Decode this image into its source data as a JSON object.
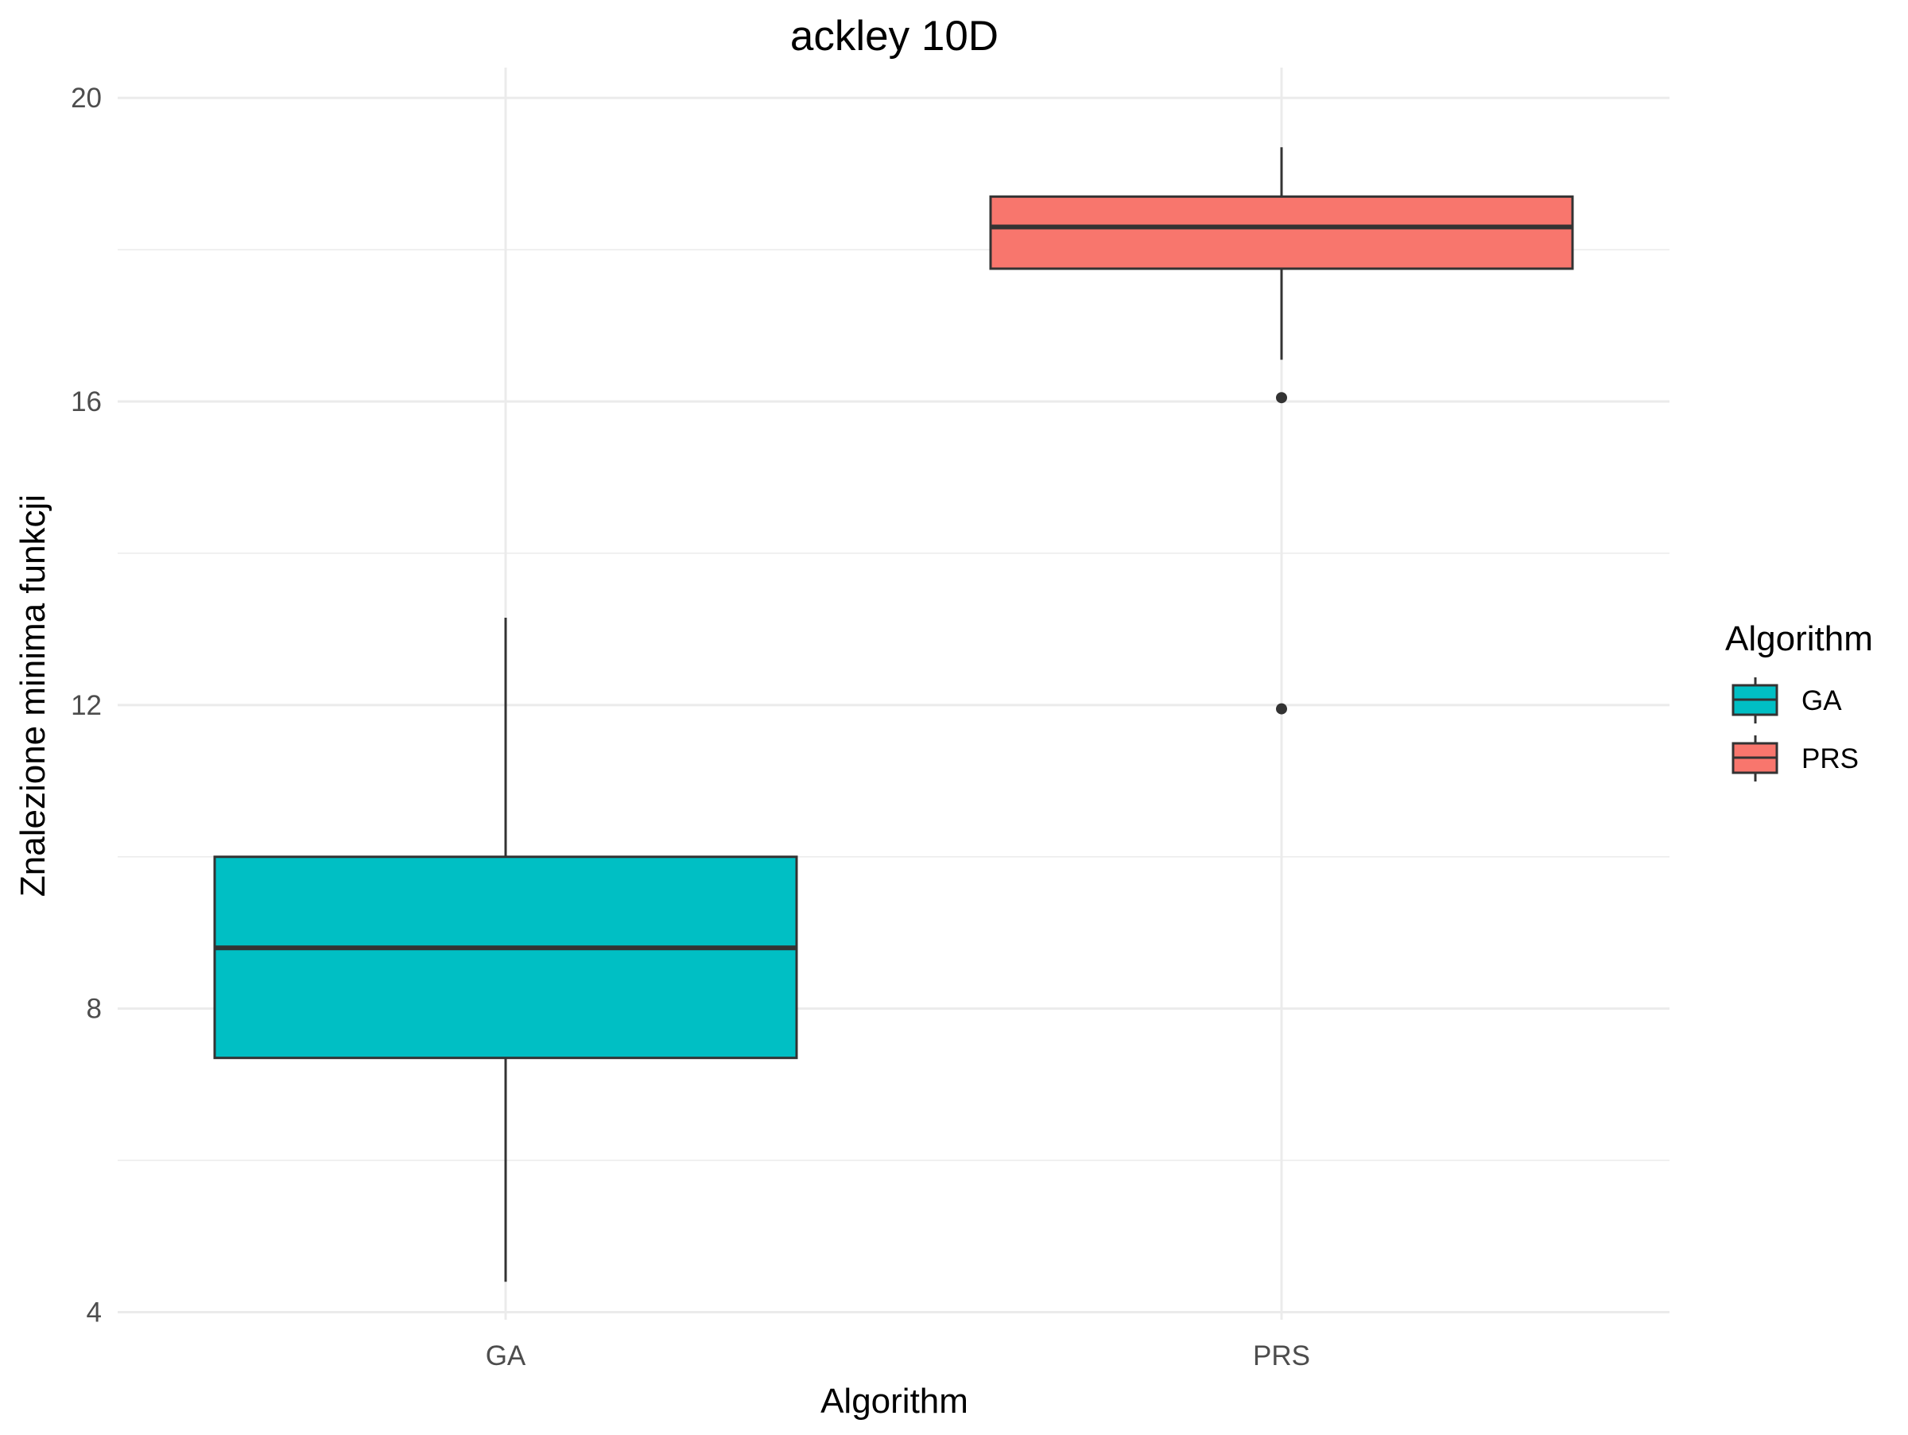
{
  "chart_data": {
    "type": "boxplot",
    "title": "ackley 10D",
    "xlabel": "Algorithm",
    "ylabel": "Znalezione minima funkcji",
    "categories": [
      "GA",
      "PRS"
    ],
    "ylim": [
      3.9,
      20.4
    ],
    "yticks": [
      4,
      8,
      12,
      16,
      20
    ],
    "grid": true,
    "legend": {
      "title": "Algorithm",
      "position": "right",
      "entries": [
        "GA",
        "PRS"
      ]
    },
    "boxes": [
      {
        "name": "GA",
        "color": "#00BFC4",
        "whisker_low": 4.4,
        "q1": 7.35,
        "median": 8.8,
        "q3": 10.0,
        "whisker_high": 13.15,
        "outliers": []
      },
      {
        "name": "PRS",
        "color": "#F8766D",
        "whisker_low": 16.55,
        "q1": 17.75,
        "median": 18.3,
        "q3": 18.7,
        "whisker_high": 19.35,
        "outliers": [
          16.05,
          11.95
        ]
      }
    ]
  }
}
